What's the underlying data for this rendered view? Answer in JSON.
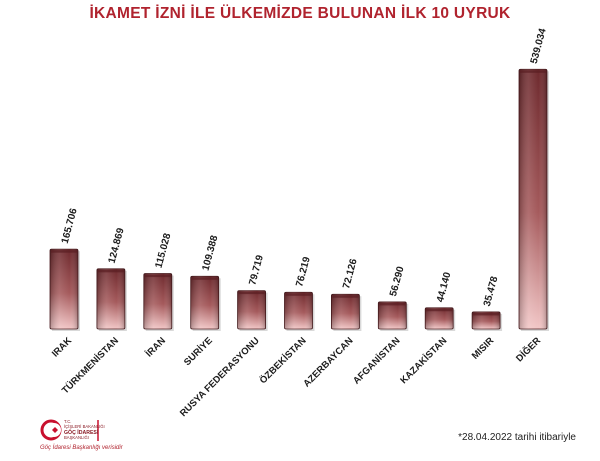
{
  "chart_data": {
    "type": "bar",
    "title": "İKAMET İZNİ İLE ÜLKEMİZDE BULUNAN İLK 10 UYRUK",
    "categories": [
      "IRAK",
      "TÜRKMENİSTAN",
      "İRAN",
      "SURİYE",
      "RUSYA FEDERASYONU",
      "ÖZBEKİSTAN",
      "AZERBAYCAN",
      "AFGANİSTAN",
      "KAZAKİSTAN",
      "MISIR",
      "DİĞER"
    ],
    "values": [
      165706,
      124869,
      115028,
      109388,
      79719,
      76219,
      72126,
      56290,
      44140,
      35478,
      539034
    ],
    "value_labels": [
      "165.706",
      "124.869",
      "115.028",
      "109.388",
      "79.719",
      "76.219",
      "72.126",
      "56.290",
      "44.140",
      "35.478",
      "539.034"
    ],
    "ylim": [
      0,
      550000
    ],
    "grid": false,
    "legend": "none",
    "colors": {
      "title": "#b0232e",
      "bar_top": "#6e2a2e",
      "bar_mid": "#a55a5c",
      "bar_bottom": "#f2c6c6",
      "bar_edge": "#4a1a1d"
    }
  },
  "footnote": "*28.04.2022 tarihi itibariyle",
  "logo": {
    "org_lines": [
      "T.C.",
      "İÇİŞLERİ BAKANLIĞI",
      "GÖÇ İDARESİ",
      "BAŞKANLIĞI"
    ],
    "icon": "migration-logo-icon"
  },
  "source": "Göç İdaresi Başkanlığı verisidir"
}
